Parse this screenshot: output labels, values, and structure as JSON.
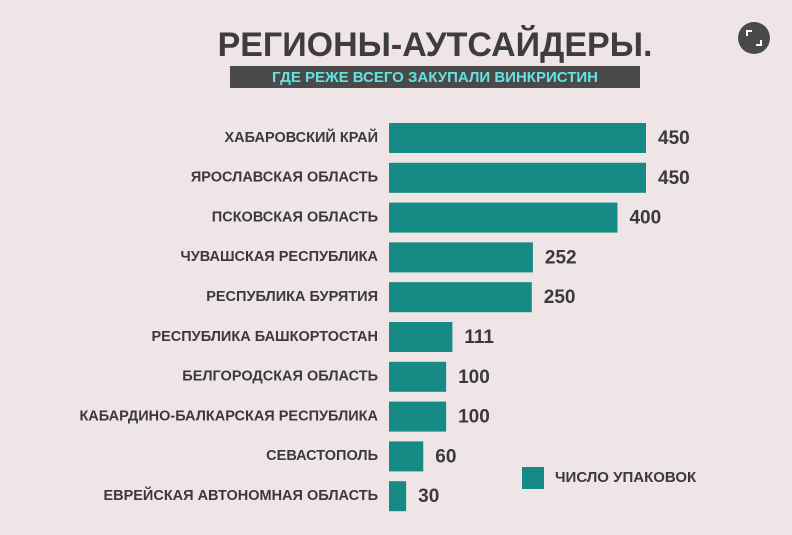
{
  "chart_data": {
    "type": "bar",
    "orientation": "horizontal",
    "title": "РЕГИОНЫ-АУТСАЙДЕРЫ.",
    "subtitle": "ГДЕ РЕЖЕ ВСЕГО ЗАКУПАЛИ ВИНКРИСТИН",
    "categories": [
      "ХАБАРОВСКИЙ КРАЙ",
      "ЯРОСЛАВСКАЯ ОБЛАСТЬ",
      "ПСКОВСКАЯ ОБЛАСТЬ",
      "ЧУВАШСКАЯ РЕСПУБЛИКА",
      "РЕСПУБЛИКА БУРЯТИЯ",
      "РЕСПУБЛИКА БАШКОРТОСТАН",
      "БЕЛГОРОДСКАЯ ОБЛАСТЬ",
      "КАБАРДИНО-БАЛКАРСКАЯ РЕСПУБЛИКА",
      "СЕВАСТОПОЛЬ",
      "ЕВРЕЙСКАЯ АВТОНОМНАЯ ОБЛАСТЬ"
    ],
    "series": [
      {
        "name": "ЧИСЛО УПАКОВОК",
        "color": "#168b85",
        "values": [
          450,
          450,
          400,
          252,
          250,
          111,
          100,
          100,
          60,
          30
        ]
      }
    ],
    "legend": "bottom-right"
  }
}
